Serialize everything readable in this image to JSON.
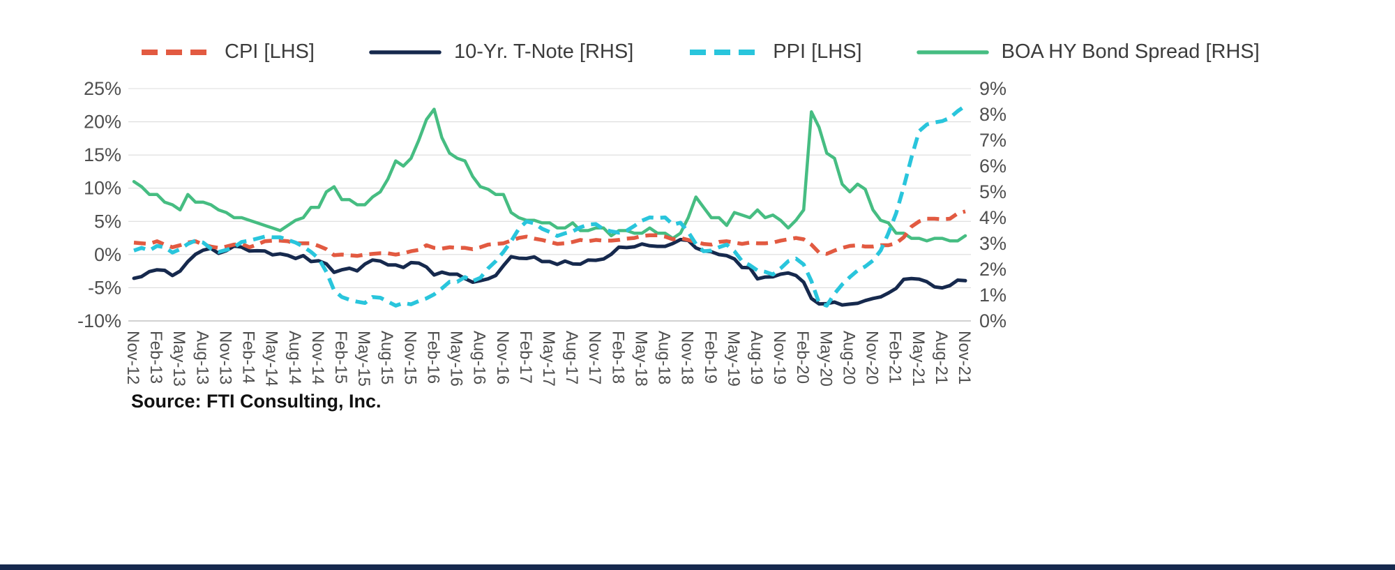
{
  "source": {
    "text": "Source: FTI Consulting, Inc."
  },
  "colors": {
    "grid": "#dcdcdc",
    "axis_line": "#c2c2c2",
    "axis_text": "#4f4f4f",
    "legend_text": "#3c3c3c",
    "footer_bar": "#16294e",
    "background": "#ffffff"
  },
  "chart_data": {
    "type": "line",
    "title": "",
    "grid": true,
    "legend_position": "top",
    "x_axis": {
      "start": "Nov-12",
      "end": "Nov-21",
      "frequency": "monthly",
      "tick_labels": [
        "Nov-12",
        "Feb-13",
        "May-13",
        "Aug-13",
        "Nov-13",
        "Feb-14",
        "May-14",
        "Aug-14",
        "Nov-14",
        "Feb-15",
        "May-15",
        "Aug-15",
        "Nov-15",
        "Feb-16",
        "May-16",
        "Aug-16",
        "Nov-16",
        "Feb-17",
        "May-17",
        "Aug-17",
        "Nov-17",
        "Feb-18",
        "May-18",
        "Aug-18",
        "Nov-18",
        "Feb-19",
        "May-19",
        "Aug-19",
        "Nov-19",
        "Feb-20",
        "May-20",
        "Aug-20",
        "Nov-20",
        "Feb-21",
        "May-21",
        "Aug-21",
        "Nov-21"
      ],
      "tick_step_months": 3
    },
    "left_axis": {
      "range": [
        -10,
        25
      ],
      "tick_values": [
        25,
        20,
        15,
        10,
        5,
        0,
        -5,
        -10
      ],
      "tick_labels": [
        "25%",
        "20%",
        "15%",
        "10%",
        "5%",
        "0%",
        "-5%",
        "-10%"
      ]
    },
    "right_axis": {
      "range": [
        0,
        9
      ],
      "tick_values": [
        9,
        8,
        7,
        6,
        5,
        4,
        3,
        2,
        1,
        0
      ],
      "tick_labels": [
        "9%",
        "8%",
        "7%",
        "6%",
        "5%",
        "4%",
        "3%",
        "2%",
        "1%",
        "0%"
      ]
    },
    "series": [
      {
        "name": "CPI [LHS]",
        "axis": "left",
        "color": "#e25a41",
        "dash": true,
        "values": [
          1.8,
          1.7,
          1.6,
          2.0,
          1.5,
          1.1,
          1.4,
          1.8,
          2.0,
          1.5,
          1.2,
          1.0,
          1.2,
          1.5,
          1.6,
          1.1,
          1.5,
          2.0,
          2.1,
          2.1,
          2.0,
          1.7,
          1.7,
          1.7,
          1.3,
          0.8,
          -0.1,
          0.0,
          -0.1,
          -0.2,
          0.0,
          0.1,
          0.2,
          0.2,
          0.0,
          0.2,
          0.5,
          0.7,
          1.4,
          1.0,
          0.9,
          1.1,
          1.0,
          1.0,
          0.8,
          1.1,
          1.5,
          1.6,
          1.7,
          2.1,
          2.5,
          2.7,
          2.4,
          2.2,
          1.9,
          1.6,
          1.7,
          1.9,
          2.2,
          2.0,
          2.2,
          2.1,
          2.1,
          2.2,
          2.4,
          2.5,
          2.8,
          2.9,
          2.9,
          2.7,
          2.3,
          2.5,
          2.2,
          1.9,
          1.6,
          1.5,
          1.9,
          2.0,
          1.8,
          1.6,
          1.8,
          1.7,
          1.7,
          1.8,
          2.1,
          2.3,
          2.5,
          2.3,
          1.5,
          0.3,
          0.1,
          0.6,
          1.0,
          1.3,
          1.4,
          1.2,
          1.2,
          1.4,
          1.4,
          1.7,
          2.6,
          4.2,
          5.0,
          5.4,
          5.4,
          5.3,
          5.4,
          6.2,
          6.5
        ]
      },
      {
        "name": "10-Yr. T-Note [RHS]",
        "axis": "right",
        "color": "#16294d",
        "dash": false,
        "values": [
          1.65,
          1.72,
          1.91,
          1.98,
          1.96,
          1.76,
          1.93,
          2.3,
          2.58,
          2.74,
          2.81,
          2.62,
          2.72,
          2.9,
          2.86,
          2.71,
          2.72,
          2.71,
          2.56,
          2.6,
          2.54,
          2.42,
          2.53,
          2.3,
          2.33,
          2.21,
          1.88,
          1.98,
          2.04,
          1.94,
          2.2,
          2.36,
          2.32,
          2.17,
          2.17,
          2.07,
          2.26,
          2.24,
          2.09,
          1.78,
          1.89,
          1.81,
          1.81,
          1.64,
          1.5,
          1.56,
          1.63,
          1.76,
          2.14,
          2.49,
          2.43,
          2.42,
          2.48,
          2.3,
          2.3,
          2.19,
          2.32,
          2.21,
          2.2,
          2.36,
          2.35,
          2.4,
          2.58,
          2.86,
          2.84,
          2.87,
          2.98,
          2.91,
          2.89,
          2.89,
          3.0,
          3.15,
          3.12,
          2.83,
          2.71,
          2.68,
          2.57,
          2.53,
          2.4,
          2.07,
          2.06,
          1.63,
          1.7,
          1.71,
          1.81,
          1.86,
          1.76,
          1.5,
          0.87,
          0.66,
          0.67,
          0.73,
          0.62,
          0.65,
          0.68,
          0.79,
          0.87,
          0.93,
          1.08,
          1.26,
          1.61,
          1.64,
          1.62,
          1.52,
          1.32,
          1.28,
          1.37,
          1.58,
          1.56
        ]
      },
      {
        "name": "PPI [LHS]",
        "axis": "left",
        "color": "#29c5dc",
        "dash": true,
        "values": [
          0.6,
          1.0,
          0.6,
          1.3,
          1.1,
          0.3,
          0.8,
          1.6,
          2.1,
          1.8,
          0.9,
          0.4,
          0.7,
          1.1,
          1.9,
          2.1,
          2.4,
          2.7,
          2.6,
          2.6,
          2.2,
          1.8,
          1.2,
          0.4,
          -0.6,
          -2.6,
          -5.4,
          -6.4,
          -6.8,
          -7.1,
          -7.3,
          -6.4,
          -6.5,
          -7.1,
          -7.7,
          -7.3,
          -7.5,
          -7.0,
          -6.6,
          -6.0,
          -5.1,
          -4.1,
          -4.1,
          -3.4,
          -4.0,
          -3.5,
          -2.1,
          -1.0,
          0.4,
          2.0,
          3.9,
          5.0,
          4.7,
          3.9,
          3.4,
          2.8,
          3.2,
          3.5,
          4.1,
          4.5,
          4.6,
          3.8,
          3.5,
          3.3,
          3.6,
          4.3,
          5.1,
          5.6,
          5.5,
          5.6,
          4.5,
          4.8,
          3.4,
          1.6,
          0.5,
          0.6,
          1.1,
          1.5,
          0.5,
          -1.0,
          -1.6,
          -2.4,
          -2.6,
          -3.0,
          -2.1,
          -1.0,
          -0.6,
          -1.5,
          -4.0,
          -7.3,
          -7.7,
          -5.9,
          -4.5,
          -3.4,
          -2.4,
          -1.8,
          -0.9,
          0.6,
          3.2,
          6.2,
          10.2,
          14.6,
          18.6,
          19.6,
          19.9,
          20.1,
          20.6,
          21.6,
          22.4
        ]
      },
      {
        "name": "BOA HY Bond Spread [RHS]",
        "axis": "right",
        "color": "#46bd82",
        "dash": false,
        "values": [
          5.4,
          5.2,
          4.9,
          4.9,
          4.6,
          4.5,
          4.3,
          4.9,
          4.6,
          4.6,
          4.5,
          4.3,
          4.2,
          4.0,
          4.0,
          3.9,
          3.8,
          3.7,
          3.6,
          3.5,
          3.7,
          3.9,
          4.0,
          4.4,
          4.4,
          5.0,
          5.2,
          4.7,
          4.7,
          4.5,
          4.5,
          4.8,
          5.0,
          5.5,
          6.2,
          6.0,
          6.3,
          7.0,
          7.8,
          8.2,
          7.1,
          6.5,
          6.3,
          6.2,
          5.6,
          5.2,
          5.1,
          4.9,
          4.9,
          4.2,
          4.0,
          3.9,
          3.9,
          3.8,
          3.8,
          3.6,
          3.6,
          3.8,
          3.5,
          3.5,
          3.6,
          3.6,
          3.3,
          3.5,
          3.5,
          3.4,
          3.4,
          3.6,
          3.4,
          3.4,
          3.2,
          3.4,
          4.0,
          4.8,
          4.4,
          4.0,
          4.0,
          3.7,
          4.2,
          4.1,
          4.0,
          4.3,
          4.0,
          4.1,
          3.9,
          3.6,
          3.9,
          4.3,
          8.1,
          7.5,
          6.5,
          6.3,
          5.3,
          5.0,
          5.3,
          5.1,
          4.3,
          3.9,
          3.8,
          3.4,
          3.4,
          3.2,
          3.2,
          3.1,
          3.2,
          3.2,
          3.1,
          3.1,
          3.3
        ]
      }
    ]
  }
}
